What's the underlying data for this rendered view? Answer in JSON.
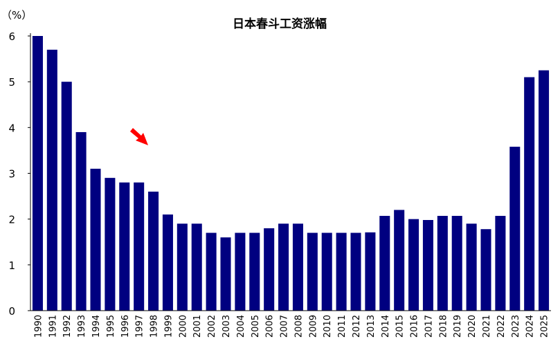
{
  "chart_data": {
    "type": "bar",
    "title": "日本春斗工资涨幅",
    "ylabel": "（%）",
    "xlabel": "",
    "ylim": [
      0,
      6
    ],
    "yticks": [
      0,
      1,
      2,
      3,
      4,
      5,
      6
    ],
    "grid": false,
    "legend": "none",
    "bar_color": "#000080",
    "annotation": {
      "kind": "arrow",
      "color": "#ff0000",
      "points_to": "1998"
    },
    "categories": [
      "1990",
      "1991",
      "1992",
      "1993",
      "1994",
      "1995",
      "1996",
      "1997",
      "1998",
      "1999",
      "2000",
      "2001",
      "2002",
      "2003",
      "2004",
      "2005",
      "2006",
      "2007",
      "2008",
      "2009",
      "2010",
      "2011",
      "2012",
      "2013",
      "2014",
      "2015",
      "2016",
      "2017",
      "2018",
      "2019",
      "2020",
      "2021",
      "2022",
      "2023",
      "2024",
      "2025"
    ],
    "values": [
      6.0,
      5.7,
      5.0,
      3.9,
      3.1,
      2.9,
      2.8,
      2.8,
      2.6,
      2.1,
      1.9,
      1.9,
      1.7,
      1.6,
      1.7,
      1.7,
      1.8,
      1.9,
      1.9,
      1.7,
      1.7,
      1.7,
      1.7,
      1.71,
      2.07,
      2.2,
      2.0,
      1.98,
      2.07,
      2.07,
      1.9,
      1.78,
      2.07,
      3.58,
      5.1,
      5.25
    ]
  }
}
